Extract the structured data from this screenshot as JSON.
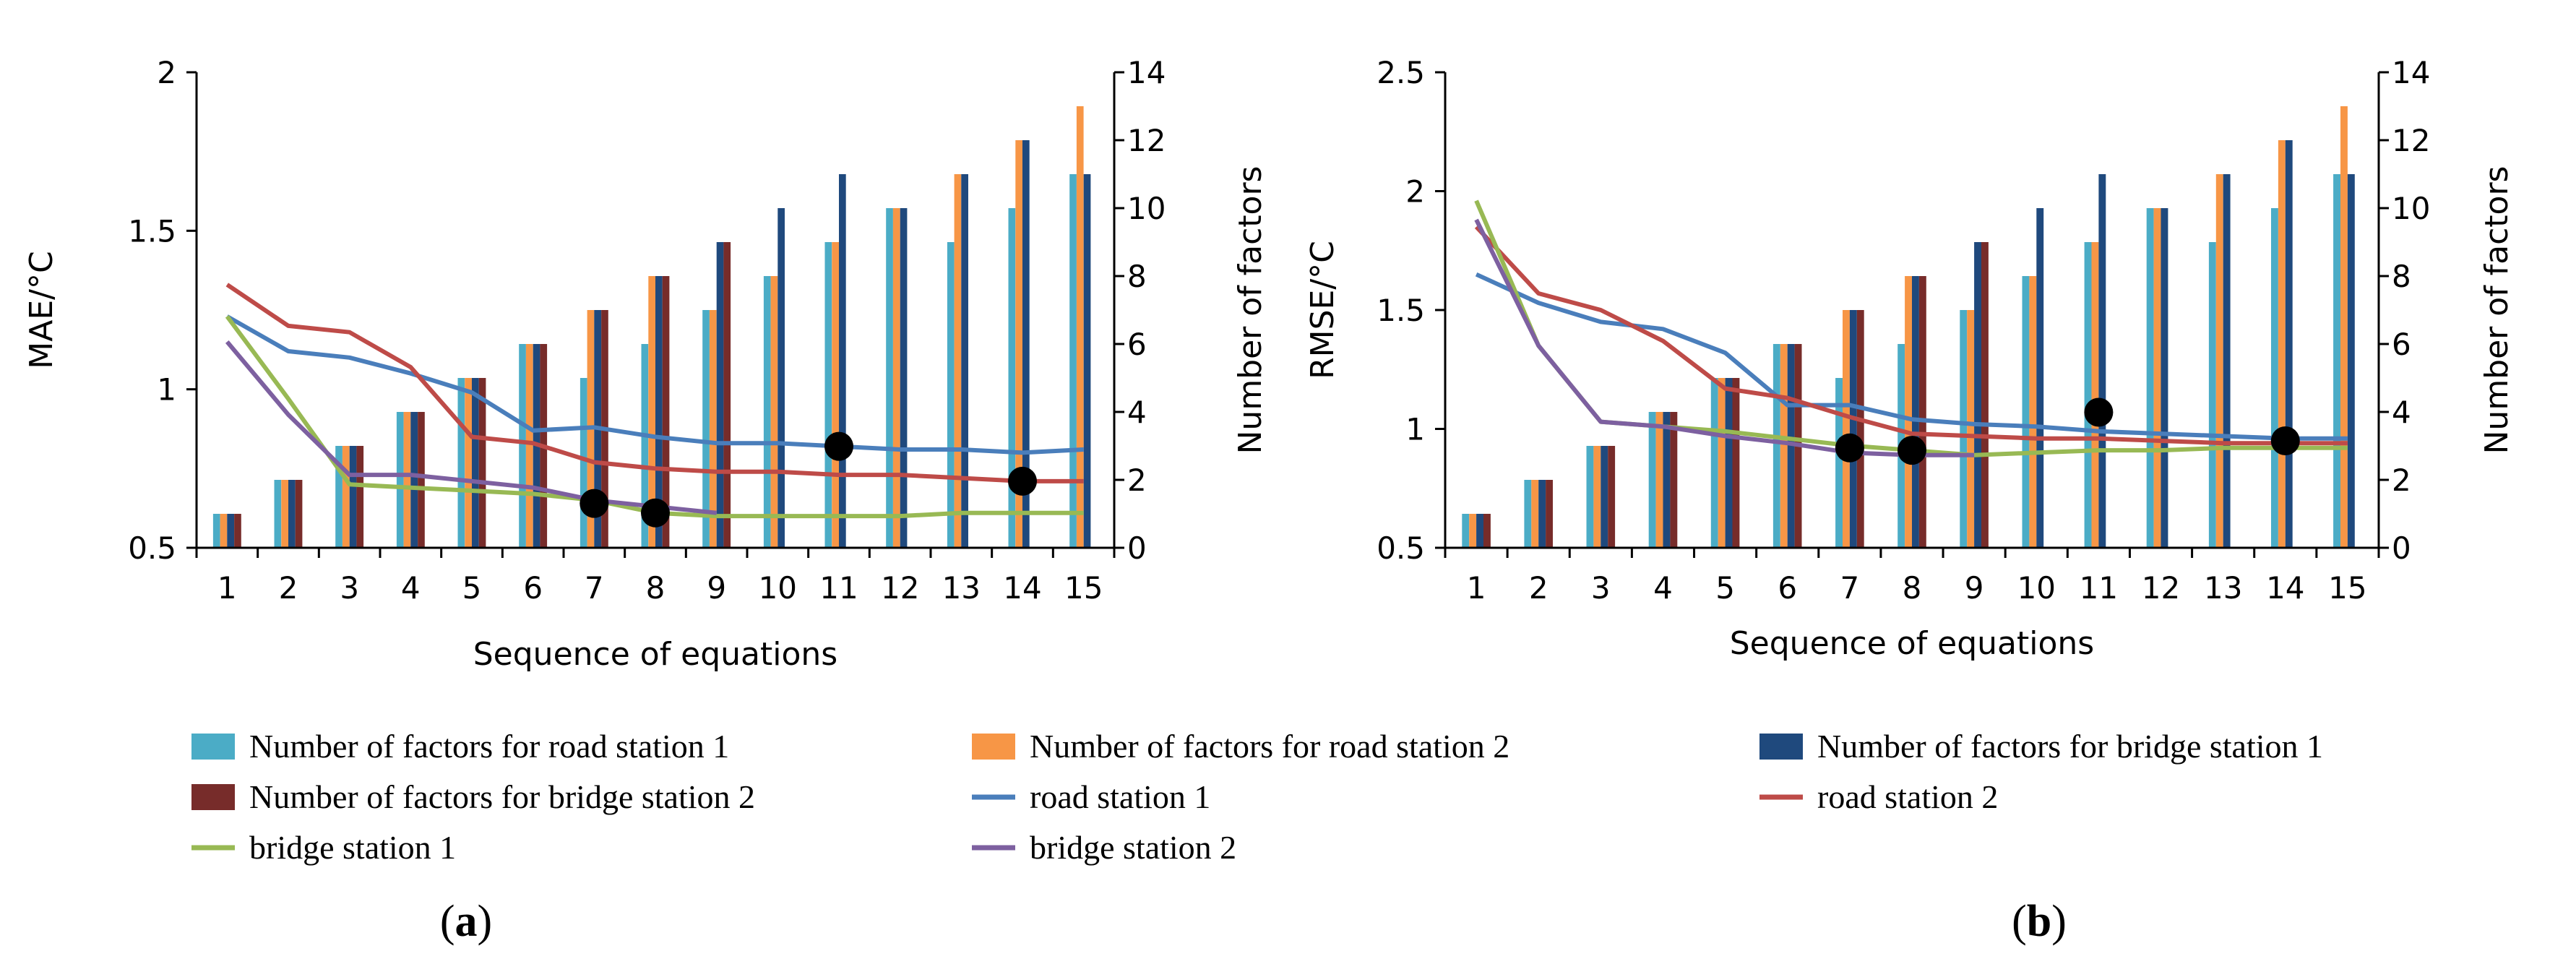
{
  "colors": {
    "road1_bar": "#4BACC6",
    "road2_bar": "#F79646",
    "bridge1_bar": "#1F497D",
    "bridge2_bar": "#772C2A",
    "road1_line": "#4A7EBB",
    "road2_line": "#BE4B48",
    "bridge1_line": "#98B954",
    "bridge2_line": "#7D60A0",
    "marker": "#000000"
  },
  "legend": [
    {
      "key": "road1_bar",
      "kind": "bar",
      "label": "Number of factors for road station 1"
    },
    {
      "key": "road2_bar",
      "kind": "bar",
      "label": "Number of factors for road station 2"
    },
    {
      "key": "bridge1_bar",
      "kind": "bar",
      "label": "Number of factors for bridge station 1"
    },
    {
      "key": "bridge2_bar",
      "kind": "bar",
      "label": "Number of factors for bridge station 2"
    },
    {
      "key": "road1_line",
      "kind": "line",
      "label": "road station 1"
    },
    {
      "key": "road2_line",
      "kind": "line",
      "label": "road station 2"
    },
    {
      "key": "bridge1_line",
      "kind": "line",
      "label": "bridge station 1"
    },
    {
      "key": "bridge2_line",
      "kind": "line",
      "label": "bridge station 2"
    }
  ],
  "chart_data": [
    {
      "id": "a",
      "type": "bar+line",
      "panel_label": "a",
      "xlabel": "Sequence of equations",
      "ylabel": "MAE/°C",
      "y2label": "Number of factors",
      "categories": [
        "1",
        "2",
        "3",
        "4",
        "5",
        "6",
        "7",
        "8",
        "9",
        "10",
        "11",
        "12",
        "13",
        "14",
        "15"
      ],
      "ylim": [
        0.5,
        2
      ],
      "yticks": [
        0.5,
        1,
        1.5,
        2
      ],
      "yticklabels": [
        "0.5",
        "1",
        "1.5",
        "2"
      ],
      "y2lim": [
        0,
        14
      ],
      "y2ticks": [
        0,
        2,
        4,
        6,
        8,
        10,
        12,
        14
      ],
      "bar_series": [
        {
          "name": "Number of factors for road station 1",
          "color_key": "road1_bar",
          "values": [
            1,
            2,
            3,
            4,
            5,
            6,
            5,
            6,
            7,
            8,
            9,
            10,
            9,
            10,
            11
          ]
        },
        {
          "name": "Number of factors for road station 2",
          "color_key": "road2_bar",
          "values": [
            1,
            2,
            3,
            4,
            5,
            6,
            7,
            8,
            7,
            8,
            9,
            10,
            11,
            12,
            13
          ]
        },
        {
          "name": "Number of factors for bridge station 1",
          "color_key": "bridge1_bar",
          "values": [
            1,
            2,
            3,
            4,
            5,
            6,
            7,
            8,
            9,
            10,
            11,
            10,
            11,
            12,
            11
          ]
        },
        {
          "name": "Number of factors for bridge station 2",
          "color_key": "bridge2_bar",
          "values": [
            1,
            2,
            3,
            4,
            5,
            6,
            7,
            8,
            9,
            null,
            null,
            null,
            null,
            null,
            null
          ]
        }
      ],
      "line_series": [
        {
          "name": "road station 1",
          "color_key": "road1_line",
          "values": [
            1.23,
            1.12,
            1.1,
            1.05,
            0.99,
            0.87,
            0.88,
            0.85,
            0.83,
            0.83,
            0.82,
            0.81,
            0.81,
            0.8,
            0.81
          ]
        },
        {
          "name": "road station 2",
          "color_key": "road2_line",
          "values": [
            1.33,
            1.2,
            1.18,
            1.07,
            0.85,
            0.83,
            0.77,
            0.75,
            0.74,
            0.74,
            0.73,
            0.73,
            0.72,
            0.71,
            0.71
          ]
        },
        {
          "name": "bridge station 1",
          "color_key": "bridge1_line",
          "values": [
            1.23,
            0.97,
            0.7,
            0.69,
            0.68,
            0.67,
            0.65,
            0.61,
            0.6,
            0.6,
            0.6,
            0.6,
            0.61,
            0.61,
            0.61
          ]
        },
        {
          "name": "bridge station 2",
          "color_key": "bridge2_line",
          "values": [
            1.15,
            0.92,
            0.73,
            0.73,
            0.71,
            0.69,
            0.65,
            0.63,
            0.61,
            null,
            null,
            null,
            null,
            null,
            null
          ]
        }
      ],
      "markers": [
        {
          "x": 7,
          "y": 0.64
        },
        {
          "x": 8,
          "y": 0.61
        },
        {
          "x": 11,
          "y": 0.82
        },
        {
          "x": 14,
          "y": 0.71
        }
      ]
    },
    {
      "id": "b",
      "type": "bar+line",
      "panel_label": "b",
      "xlabel": "Sequence of equations",
      "ylabel": "RMSE/°C",
      "y2label": "Number of factors",
      "categories": [
        "1",
        "2",
        "3",
        "4",
        "5",
        "6",
        "7",
        "8",
        "9",
        "10",
        "11",
        "12",
        "13",
        "14",
        "15"
      ],
      "ylim": [
        0.5,
        2.5
      ],
      "yticks": [
        0.5,
        1,
        1.5,
        2,
        2.5
      ],
      "yticklabels": [
        "0.5",
        "1",
        "1.5",
        "2",
        "2.5"
      ],
      "y2lim": [
        0,
        14
      ],
      "y2ticks": [
        0,
        2,
        4,
        6,
        8,
        10,
        12,
        14
      ],
      "bar_series": [
        {
          "name": "Number of factors for road station 1",
          "color_key": "road1_bar",
          "values": [
            1,
            2,
            3,
            4,
            5,
            6,
            5,
            6,
            7,
            8,
            9,
            10,
            9,
            10,
            11
          ]
        },
        {
          "name": "Number of factors for road station 2",
          "color_key": "road2_bar",
          "values": [
            1,
            2,
            3,
            4,
            5,
            6,
            7,
            8,
            7,
            8,
            9,
            10,
            11,
            12,
            13
          ]
        },
        {
          "name": "Number of factors for bridge station 1",
          "color_key": "bridge1_bar",
          "values": [
            1,
            2,
            3,
            4,
            5,
            6,
            7,
            8,
            9,
            10,
            11,
            10,
            11,
            12,
            11
          ]
        },
        {
          "name": "Number of factors for bridge station 2",
          "color_key": "bridge2_bar",
          "values": [
            1,
            2,
            3,
            4,
            5,
            6,
            7,
            8,
            9,
            null,
            null,
            null,
            null,
            null,
            null
          ]
        }
      ],
      "line_series": [
        {
          "name": "road station 1",
          "color_key": "road1_line",
          "values": [
            1.65,
            1.53,
            1.45,
            1.42,
            1.32,
            1.1,
            1.1,
            1.04,
            1.02,
            1.01,
            0.99,
            0.98,
            0.97,
            0.96,
            0.96
          ]
        },
        {
          "name": "road station 2",
          "color_key": "road2_line",
          "values": [
            1.85,
            1.57,
            1.5,
            1.37,
            1.17,
            1.13,
            1.05,
            0.98,
            0.97,
            0.96,
            0.96,
            0.95,
            0.94,
            0.94,
            0.94
          ]
        },
        {
          "name": "bridge station 1",
          "color_key": "bridge1_line",
          "values": [
            1.96,
            1.35,
            1.03,
            1.01,
            0.99,
            0.96,
            0.93,
            0.91,
            0.89,
            0.9,
            0.91,
            0.91,
            0.92,
            0.92,
            0.92
          ]
        },
        {
          "name": "bridge station 2",
          "color_key": "bridge2_line",
          "values": [
            1.88,
            1.35,
            1.03,
            1.01,
            0.97,
            0.94,
            0.9,
            0.89,
            0.89,
            null,
            null,
            null,
            null,
            null,
            null
          ]
        }
      ],
      "markers": [
        {
          "x": 7,
          "y": 0.92
        },
        {
          "x": 8,
          "y": 0.91
        },
        {
          "x": 11,
          "y": 1.07
        },
        {
          "x": 14,
          "y": 0.95
        }
      ]
    }
  ]
}
